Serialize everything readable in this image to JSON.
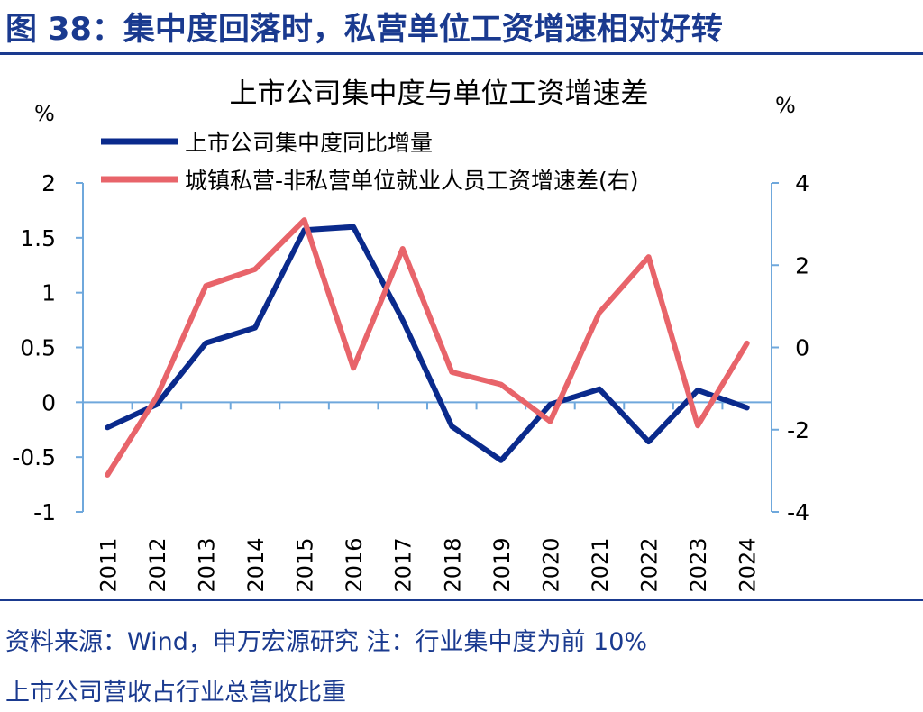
{
  "figure": {
    "title": "图 38：集中度回落时，私营单位工资增速相对好转",
    "source": "资料来源：Wind，申万宏源研究  注：行业集中度为前 10%",
    "note": "上市公司营收占行业总营收比重"
  },
  "chart_data": {
    "type": "line",
    "title": "上市公司集中度与单位工资增速差",
    "x": [
      "2011",
      "2012",
      "2013",
      "2014",
      "2015",
      "2016",
      "2017",
      "2018",
      "2019",
      "2020",
      "2021",
      "2022",
      "2023",
      "2024"
    ],
    "y_left": {
      "unit": "%",
      "range": [
        -1,
        2
      ],
      "ticks": [
        "2",
        "1.5",
        "1",
        "0.5",
        "0",
        "-0.5",
        "-1"
      ]
    },
    "y_right": {
      "unit": "%",
      "range": [
        -4,
        4
      ],
      "ticks": [
        "4",
        "2",
        "0",
        "-2",
        "-4"
      ]
    },
    "series": [
      {
        "name": "上市公司集中度同比增量",
        "axis": "left",
        "color": "#0a2a8c",
        "values": [
          -0.23,
          -0.02,
          0.54,
          0.68,
          1.57,
          1.6,
          0.75,
          -0.22,
          -0.53,
          -0.02,
          0.12,
          -0.36,
          0.11,
          -0.05
        ]
      },
      {
        "name": "城镇私营-非私营单位就业人员工资增速差(右)",
        "axis": "right",
        "color": "#e8646a",
        "values": [
          -3.1,
          -1.2,
          1.5,
          1.9,
          3.1,
          -0.5,
          2.4,
          -0.6,
          -0.9,
          -1.8,
          0.85,
          2.2,
          -1.9,
          0.1
        ]
      }
    ]
  }
}
